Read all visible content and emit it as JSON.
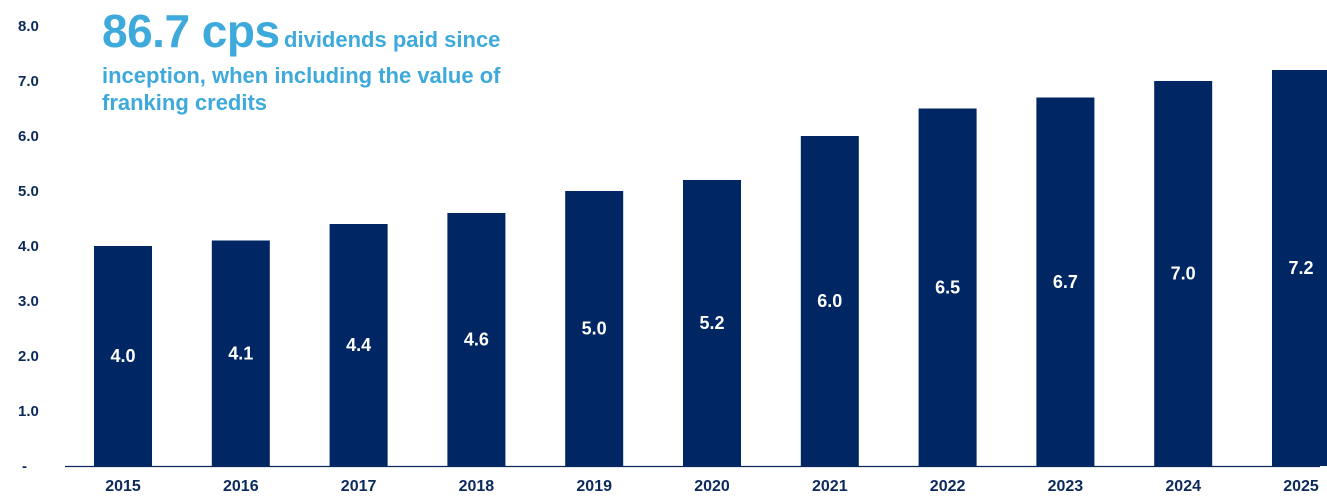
{
  "headline": {
    "big": "86.7 cps",
    "rest_line1": "dividends paid since",
    "rest_line2": "inception, when including the value of",
    "rest_line3": "franking credits"
  },
  "colors": {
    "bar": "#002663",
    "accent": "#3ea9db",
    "text": "#0b2a5b",
    "label": "#ffffff"
  },
  "chart_data": {
    "type": "bar",
    "categories": [
      "2015",
      "2016",
      "2017",
      "2018",
      "2019",
      "2020",
      "2021",
      "2022",
      "2023",
      "2024",
      "2025"
    ],
    "values": [
      4.0,
      4.1,
      4.4,
      4.6,
      5.0,
      5.2,
      6.0,
      6.5,
      6.7,
      7.0,
      7.2
    ],
    "data_labels": [
      "4.0",
      "4.1",
      "4.4",
      "4.6",
      "5.0",
      "5.2",
      "6.0",
      "6.5",
      "6.7",
      "7.0",
      "7.2"
    ],
    "ylim": [
      0,
      8
    ],
    "yticks": [
      "-",
      "1.0",
      "2.0",
      "3.0",
      "4.0",
      "5.0",
      "6.0",
      "7.0",
      "8.0"
    ],
    "grid": false,
    "legend": "none"
  }
}
